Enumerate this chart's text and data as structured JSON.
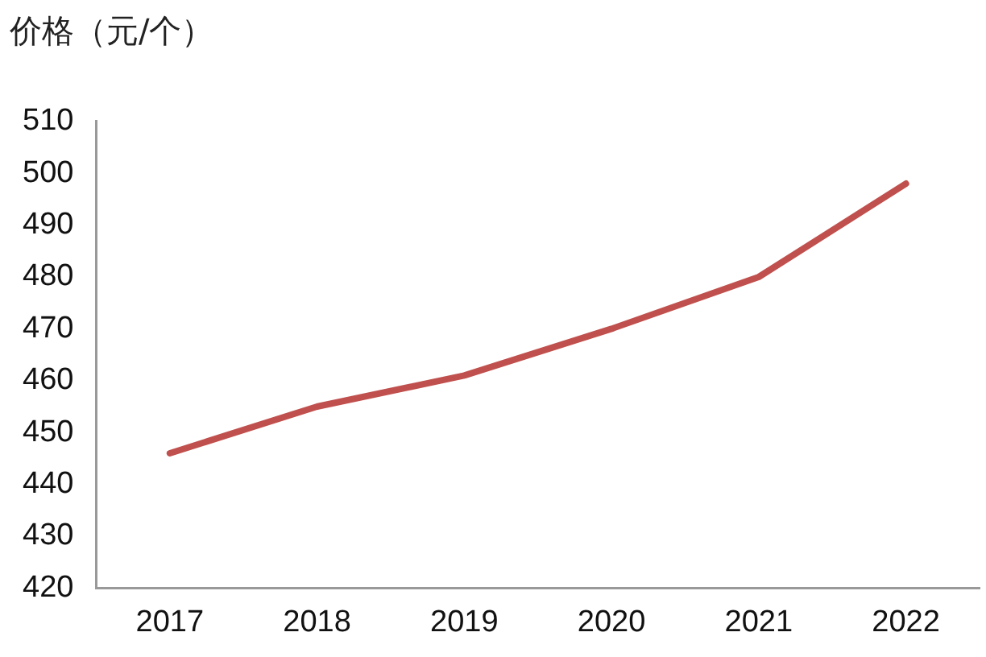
{
  "chart_data": {
    "type": "line",
    "ylabel": "价格（元/个）",
    "categories": [
      "2017",
      "2018",
      "2019",
      "2020",
      "2021",
      "2022"
    ],
    "series": [
      {
        "color": "#c0504d",
        "values": [
          446,
          455,
          461,
          470,
          480,
          498
        ]
      }
    ],
    "ylim": [
      420,
      510
    ],
    "yticks": [
      420,
      430,
      440,
      450,
      460,
      470,
      480,
      490,
      500,
      510
    ],
    "grid": false,
    "legend": false,
    "marker": "none"
  }
}
